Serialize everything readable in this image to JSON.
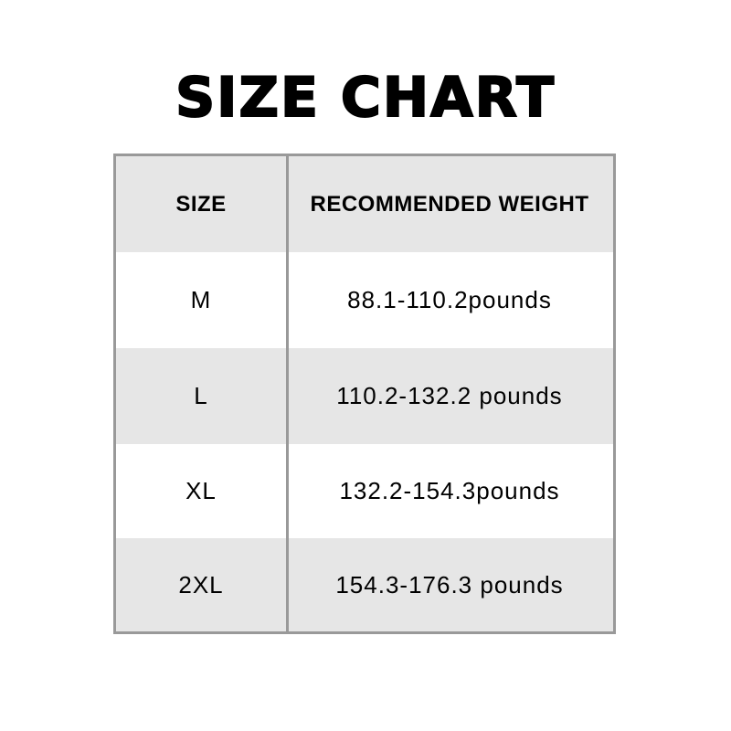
{
  "title": "SIZE CHART",
  "headers": {
    "size": "SIZE",
    "weight": "RECOMMENDED WEIGHT"
  },
  "rows": [
    {
      "size": "M",
      "weight": "88.1-110.2pounds"
    },
    {
      "size": "L",
      "weight": "110.2-132.2 pounds"
    },
    {
      "size": "XL",
      "weight": "132.2-154.3pounds"
    },
    {
      "size": "2XL",
      "weight": "154.3-176.3 pounds"
    }
  ],
  "colors": {
    "border": "#999999",
    "shaded_row": "#e6e6e6"
  }
}
